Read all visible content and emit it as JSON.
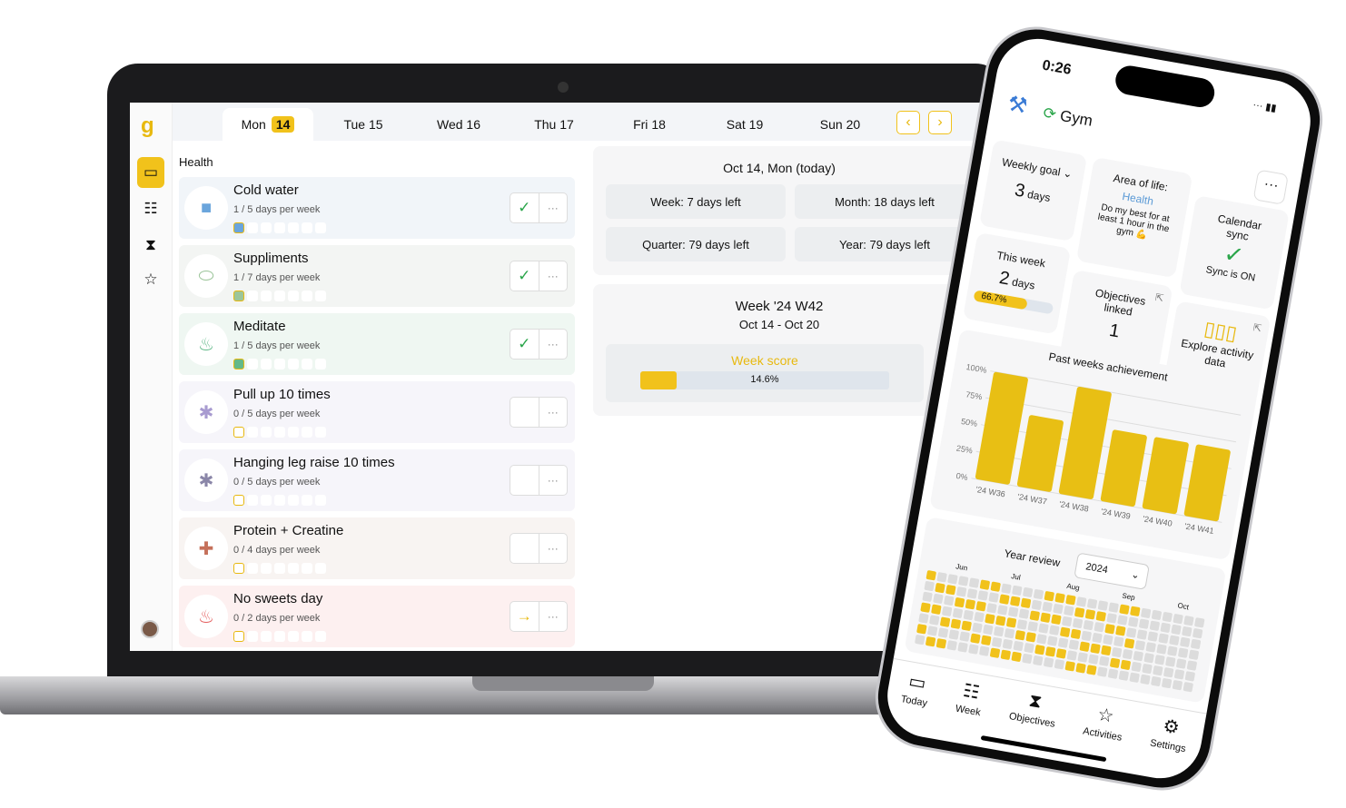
{
  "laptop": {
    "sidebar": {
      "logo": "g",
      "items": [
        {
          "name": "today",
          "icon": "calendar-icon"
        },
        {
          "name": "week",
          "icon": "calendar-week-icon"
        },
        {
          "name": "objectives",
          "icon": "hourglass-icon"
        },
        {
          "name": "activities",
          "icon": "star-icon"
        }
      ]
    },
    "tabs": [
      {
        "day": "Mon",
        "date": "14",
        "active": true
      },
      {
        "day": "Tue",
        "date": "15"
      },
      {
        "day": "Wed",
        "date": "16"
      },
      {
        "day": "Thu",
        "date": "17"
      },
      {
        "day": "Fri",
        "date": "18"
      },
      {
        "day": "Sat",
        "date": "19"
      },
      {
        "day": "Sun",
        "date": "20"
      }
    ],
    "nav": {
      "prev": "‹",
      "next": "›"
    },
    "section": "Health",
    "habits": [
      {
        "title": "Cold water",
        "progress": "1 / 5 days per week",
        "done": 1,
        "status": "done",
        "color": "#f1f5f9",
        "icon": "square-icon",
        "icon_color": "#6aa5dc"
      },
      {
        "title": "Suppliments",
        "progress": "1 / 7 days per week",
        "done": 1,
        "status": "done",
        "color": "#f3f5f3",
        "icon": "pill-icon",
        "icon_color": "#9cc59a"
      },
      {
        "title": "Meditate",
        "progress": "1 / 5 days per week",
        "done": 1,
        "status": "done",
        "color": "#eff7f2",
        "icon": "meditate-icon",
        "icon_color": "#63b98a"
      },
      {
        "title": "Pull up 10 times",
        "progress": "0 / 5 days per week",
        "done": 0,
        "status": "empty",
        "color": "#f6f5fa",
        "icon": "exercise-icon",
        "icon_color": "#a89bd0"
      },
      {
        "title": "Hanging leg raise 10 times",
        "progress": "0 / 5 days per week",
        "done": 0,
        "status": "empty",
        "color": "#f6f5fa",
        "icon": "exercise-icon",
        "icon_color": "#8a86a8"
      },
      {
        "title": "Protein + Creatine",
        "progress": "0 / 4 days per week",
        "done": 0,
        "status": "empty",
        "color": "#f8f4f2",
        "icon": "first-aid-icon",
        "icon_color": "#c5705a"
      },
      {
        "title": "No sweets day",
        "progress": "0 / 2 days per week",
        "done": 0,
        "status": "skip",
        "color": "#fdf0f0",
        "icon": "cake-icon",
        "icon_color": "#e45d5d"
      }
    ],
    "summary": {
      "title": "Oct 14, Mon (today)",
      "week": "Week: 7 days left",
      "month": "Month: 18 days left",
      "quarter": "Quarter: 79 days left",
      "year": "Year: 79 days left"
    },
    "week": {
      "title": "Week '24 W42",
      "range": "Oct 14 - Oct 20",
      "score_label": "Week score",
      "score": "14.6%",
      "score_value": 14.6
    }
  },
  "phone": {
    "time": "0:26",
    "title": "Gym",
    "weekly_goal": {
      "label": "Weekly goal",
      "value": "3",
      "unit": "days"
    },
    "area": {
      "label": "Area of life:",
      "value": "Health",
      "desc": "Do my best for at least 1 hour in the gym 💪"
    },
    "calendar": {
      "label": "Calendar sync",
      "status": "Sync is ON"
    },
    "this_week": {
      "label": "This week",
      "value": "2",
      "unit": "days",
      "percent": "66.7%",
      "percent_value": 66.7
    },
    "objectives": {
      "label": "Objectives linked",
      "value": "1"
    },
    "explore": {
      "label": "Explore activity data"
    },
    "year_review": {
      "label": "Year review",
      "year": "2024",
      "months": [
        "Jun",
        "Jul",
        "Aug",
        "Sep",
        "Oct"
      ]
    },
    "tabbar": [
      {
        "label": "Today",
        "icon": "calendar-icon"
      },
      {
        "label": "Week",
        "icon": "calendar-week-icon"
      },
      {
        "label": "Objectives",
        "icon": "hourglass-icon"
      },
      {
        "label": "Activities",
        "icon": "star-icon"
      },
      {
        "label": "Settings",
        "icon": "gear-icon"
      }
    ]
  },
  "chart_data": {
    "type": "bar",
    "title": "Past weeks achievement",
    "categories": [
      "'24 W36",
      "'24 W37",
      "'24 W38",
      "'24 W39",
      "'24 W40",
      "'24 W41"
    ],
    "values": [
      100,
      66.7,
      100,
      66.7,
      66.7,
      66.7
    ],
    "yticks": [
      "0%",
      "25%",
      "50%",
      "75%",
      "100%"
    ],
    "ylim": [
      0,
      100
    ],
    "grid": true,
    "color": "#e8bf14"
  }
}
